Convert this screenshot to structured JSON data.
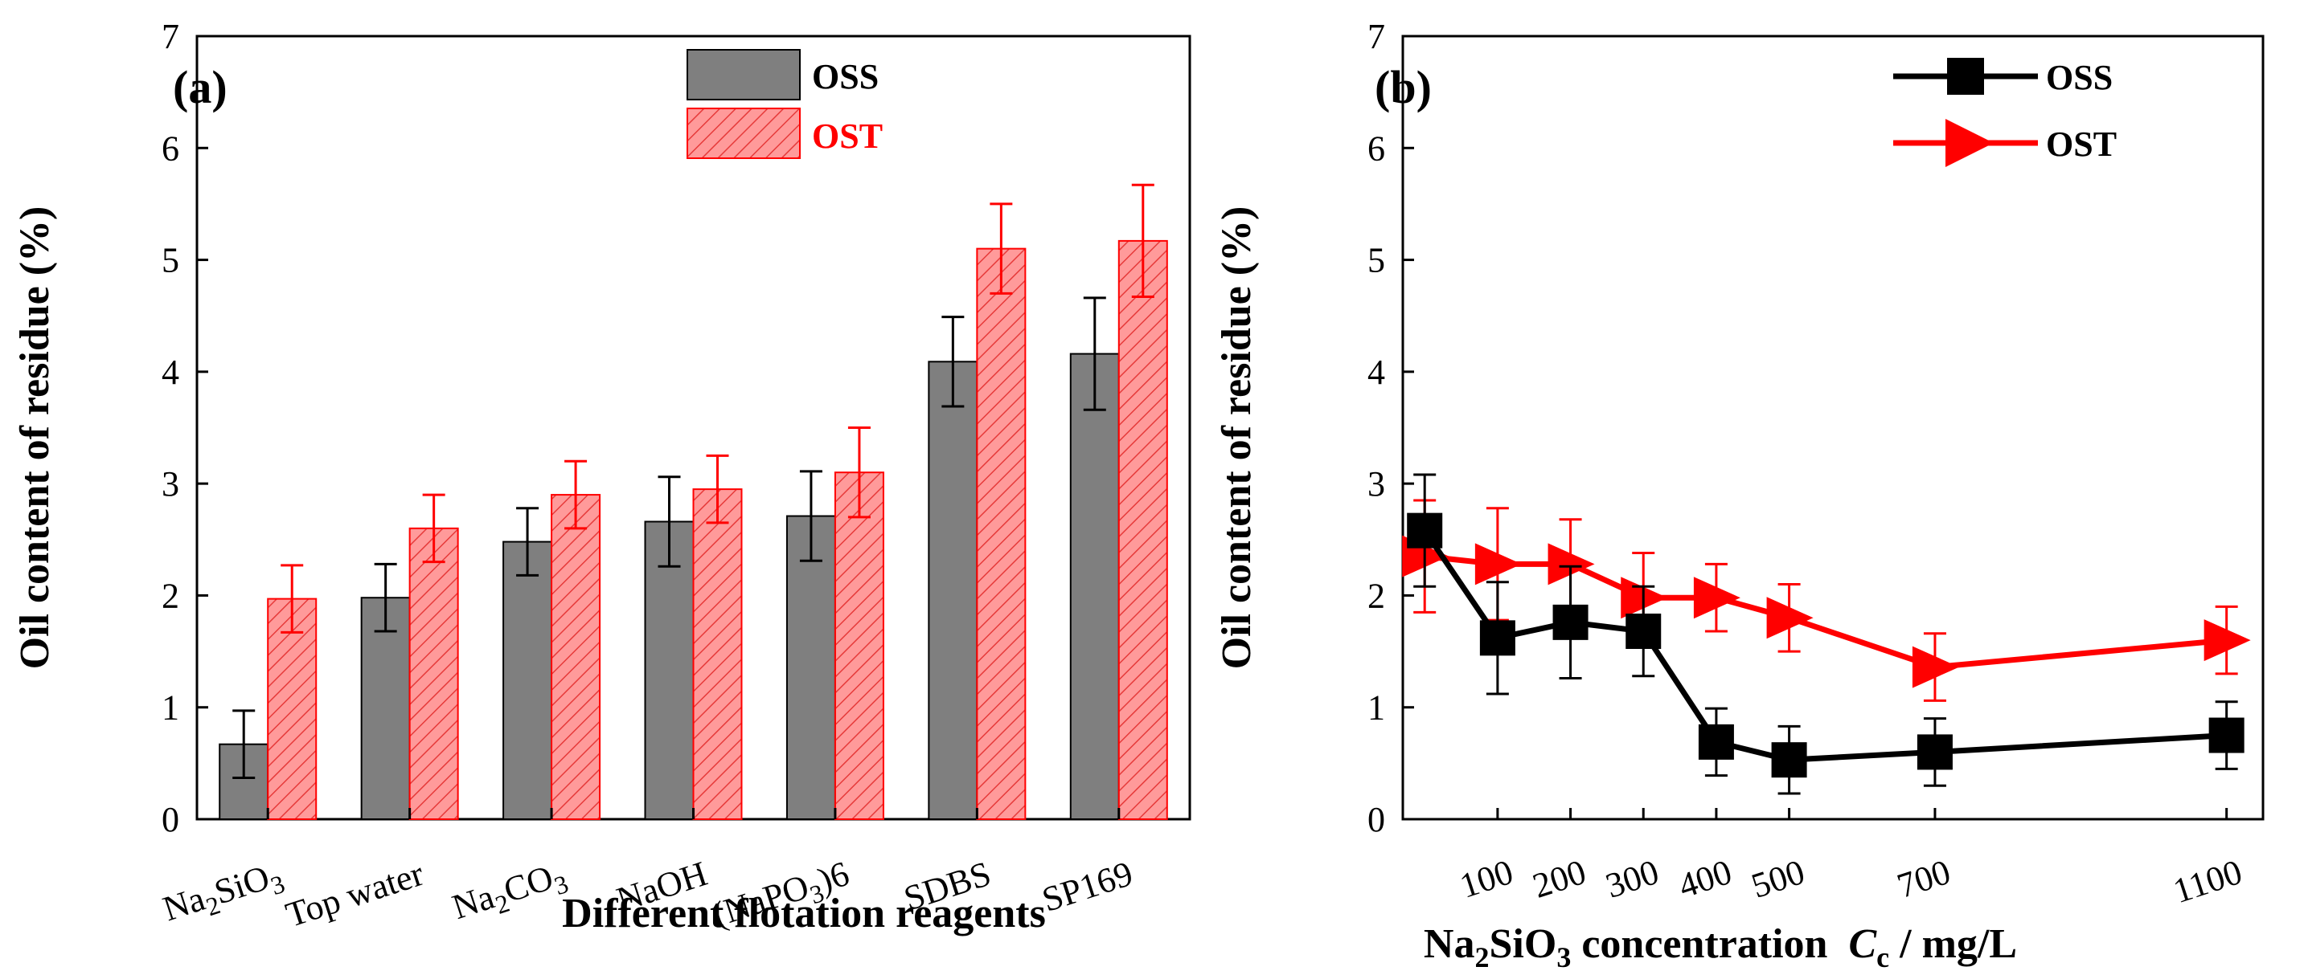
{
  "chart_data": [
    {
      "panel": "(a)",
      "type": "bar",
      "title": "",
      "xlabel": "Different flotation reagents",
      "ylabel": "Oil content of residue (%)",
      "ylim": [
        0,
        7
      ],
      "yticks": [
        "0",
        "1",
        "2",
        "3",
        "4",
        "5",
        "6",
        "7"
      ],
      "categories": [
        {
          "label": "Na2SiO3",
          "base": "Na",
          "sub1": "2",
          "mid": "SiO",
          "sub2": "3",
          "tail": ""
        },
        {
          "label": "Top water",
          "base": "Top water",
          "sub1": "",
          "mid": "",
          "sub2": "",
          "tail": ""
        },
        {
          "label": "Na2CO3",
          "base": "Na",
          "sub1": "2",
          "mid": "CO",
          "sub2": "3",
          "tail": ""
        },
        {
          "label": "NaOH",
          "base": "NaOH",
          "sub1": "",
          "mid": "",
          "sub2": "",
          "tail": ""
        },
        {
          "label": "(NaPO3)6",
          "base": "(NaPO",
          "sub1": "3",
          "mid": ")6",
          "sub2": "",
          "tail": ""
        },
        {
          "label": "SDBS",
          "base": "SDBS",
          "sub1": "",
          "mid": "",
          "sub2": "",
          "tail": ""
        },
        {
          "label": "SP169",
          "base": "SP169",
          "sub1": "",
          "mid": "",
          "sub2": "",
          "tail": ""
        }
      ],
      "series": [
        {
          "name": "OSS",
          "color": "#7f7f7f",
          "values": [
            0.67,
            1.98,
            2.48,
            2.66,
            2.71,
            4.09,
            4.16
          ],
          "errors": [
            0.3,
            0.3,
            0.3,
            0.4,
            0.4,
            0.4,
            0.5
          ]
        },
        {
          "name": "OST",
          "color": "#ff5555",
          "values": [
            1.97,
            2.6,
            2.9,
            2.95,
            3.1,
            5.1,
            5.17
          ],
          "errors": [
            0.3,
            0.3,
            0.3,
            0.3,
            0.4,
            0.4,
            0.5
          ]
        }
      ],
      "legend_position": "top-right"
    },
    {
      "panel": "(b)",
      "type": "line",
      "title": "",
      "xlabel_parts": [
        "Na",
        "2",
        "SiO",
        "3",
        " concentration  ",
        "C",
        "c",
        " / mg/L"
      ],
      "xlabel": "Na2SiO3 concentration Cc / mg/L",
      "ylabel": "Oil content of residue (%)",
      "ylim": [
        0,
        7
      ],
      "xlim": [
        -30,
        1150
      ],
      "yticks": [
        "0",
        "1",
        "2",
        "3",
        "4",
        "5",
        "6",
        "7"
      ],
      "xticks": [
        100,
        200,
        300,
        400,
        500,
        700,
        1100
      ],
      "xtick_labels": [
        "100",
        "200",
        "300",
        "400",
        "500",
        "700",
        "1100"
      ],
      "series": [
        {
          "name": "OSS",
          "color": "#000000",
          "marker": "square",
          "x": [
            0,
            100,
            200,
            300,
            400,
            500,
            700,
            1100
          ],
          "y": [
            2.58,
            1.62,
            1.76,
            1.68,
            0.69,
            0.53,
            0.6,
            0.75
          ],
          "errors": [
            0.5,
            0.5,
            0.5,
            0.4,
            0.3,
            0.3,
            0.3,
            0.3
          ]
        },
        {
          "name": "OST",
          "color": "#ff0000",
          "marker": "triangle-right",
          "x": [
            0,
            100,
            200,
            300,
            400,
            500,
            700,
            1100
          ],
          "y": [
            2.35,
            2.28,
            2.28,
            1.98,
            1.98,
            1.8,
            1.36,
            1.6
          ],
          "errors": [
            0.5,
            0.5,
            0.4,
            0.4,
            0.3,
            0.3,
            0.3,
            0.3
          ]
        }
      ],
      "legend_position": "top-right"
    }
  ]
}
